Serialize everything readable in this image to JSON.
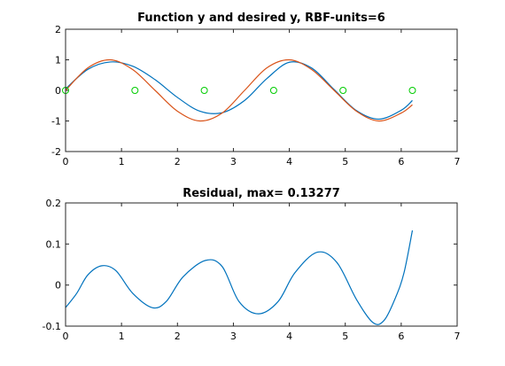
{
  "colors": {
    "series_blue": "#0072BD",
    "series_orange": "#D95319",
    "center_green": "#00CC00"
  },
  "chart_data": [
    {
      "type": "line",
      "title": "Function y and desired y, RBF-units=6",
      "xlabel": "",
      "ylabel": "",
      "xlim": [
        0,
        7
      ],
      "ylim": [
        -2,
        2
      ],
      "xticks": [
        0,
        1,
        2,
        3,
        4,
        5,
        6,
        7
      ],
      "yticks": [
        -2,
        -1,
        0,
        1,
        2
      ],
      "grid": false,
      "series": [
        {
          "color": "#0072BD",
          "x": [
            0.0,
            0.4,
            0.8,
            1.2,
            1.6,
            2.0,
            2.4,
            2.8,
            3.2,
            3.6,
            4.0,
            4.4,
            4.8,
            5.2,
            5.6,
            6.0,
            6.2
          ],
          "y": [
            0.05,
            0.69,
            0.93,
            0.79,
            0.35,
            -0.23,
            -0.68,
            -0.73,
            -0.33,
            0.39,
            0.92,
            0.73,
            0.03,
            -0.66,
            -0.94,
            -0.65,
            -0.33
          ]
        },
        {
          "color": "#D95319",
          "x": [
            0.0,
            0.4,
            0.8,
            1.2,
            1.6,
            2.0,
            2.4,
            2.8,
            3.2,
            3.6,
            4.0,
            4.4,
            4.8,
            5.2,
            5.6,
            6.0,
            6.2
          ],
          "y": [
            0.0,
            0.74,
            1.0,
            0.68,
            0.0,
            -0.68,
            -1.0,
            -0.74,
            0.0,
            0.74,
            1.0,
            0.68,
            0.0,
            -0.68,
            -1.0,
            -0.74,
            -0.47
          ]
        },
        {
          "color": "#00CC00",
          "marker": "circle",
          "x": [
            0,
            1.24,
            2.48,
            3.72,
            4.96,
            6.2
          ],
          "y": [
            0,
            0,
            0,
            0,
            0,
            0
          ]
        }
      ]
    },
    {
      "type": "line",
      "title": "Residual, max= 0.13277",
      "xlabel": "",
      "ylabel": "",
      "xlim": [
        0,
        7
      ],
      "ylim": [
        -0.1,
        0.2
      ],
      "xticks": [
        0,
        1,
        2,
        3,
        4,
        5,
        6,
        7
      ],
      "yticks": [
        -0.1,
        0,
        0.1,
        0.2
      ],
      "grid": false,
      "series": [
        {
          "color": "#0072BD",
          "x": [
            0.0,
            0.2,
            0.4,
            0.65,
            0.9,
            1.2,
            1.55,
            1.8,
            2.1,
            2.5,
            2.8,
            3.1,
            3.45,
            3.8,
            4.1,
            4.5,
            4.85,
            5.2,
            5.5,
            5.7,
            5.9,
            6.05,
            6.2
          ],
          "y": [
            -0.055,
            -0.02,
            0.025,
            0.047,
            0.035,
            -0.02,
            -0.055,
            -0.04,
            0.02,
            0.06,
            0.045,
            -0.04,
            -0.07,
            -0.04,
            0.03,
            0.08,
            0.055,
            -0.035,
            -0.092,
            -0.085,
            -0.03,
            0.03,
            0.133
          ]
        }
      ]
    }
  ]
}
